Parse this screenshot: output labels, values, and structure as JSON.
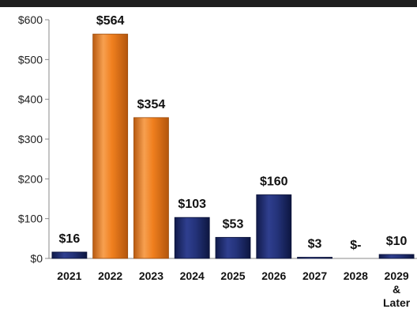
{
  "chart_data": {
    "type": "bar",
    "categories": [
      "2021",
      "2022",
      "2023",
      "2024",
      "2025",
      "2026",
      "2027",
      "2028",
      "2029 & Later"
    ],
    "category_lines": [
      [
        "2021"
      ],
      [
        "2022"
      ],
      [
        "2023"
      ],
      [
        "2024"
      ],
      [
        "2025"
      ],
      [
        "2026"
      ],
      [
        "2027"
      ],
      [
        "2028"
      ],
      [
        "2029",
        "&",
        "Later"
      ]
    ],
    "values": [
      16,
      564,
      354,
      103,
      53,
      160,
      3,
      0,
      10
    ],
    "data_labels": [
      "$16",
      "$564",
      "$354",
      "$103",
      "$53",
      "$160",
      "$3",
      "$-",
      "$10"
    ],
    "bar_colors": [
      "navy",
      "orange",
      "orange",
      "navy",
      "navy",
      "navy",
      "navy",
      "navy",
      "navy"
    ],
    "colors": {
      "navy": "#1c2a6b",
      "orange": "#f07f1e",
      "axis": "#888888",
      "band": "#1f1f1f"
    },
    "y_ticks": [
      0,
      100,
      200,
      300,
      400,
      500,
      600
    ],
    "y_tick_labels": [
      "$0",
      "$100",
      "$200",
      "$300",
      "$400",
      "$500",
      "$600"
    ],
    "ylim": [
      0,
      600
    ],
    "title": "",
    "xlabel": "",
    "ylabel": "",
    "grid": false,
    "legend": "none"
  }
}
